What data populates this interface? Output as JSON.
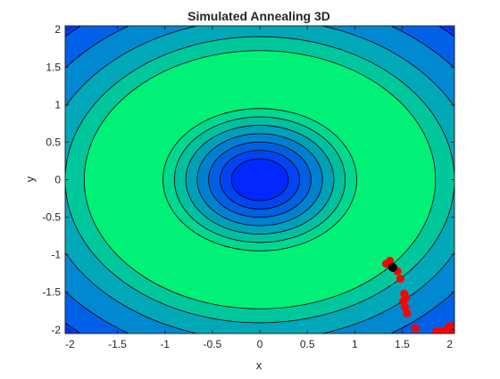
{
  "chart_data": {
    "type": "contour",
    "title": "Simulated Annealing 3D",
    "xlabel": "x",
    "ylabel": "y",
    "xlim": [
      -2.05,
      2.05
    ],
    "ylim": [
      -2.05,
      2.05
    ],
    "xticks": [
      -2,
      -1.5,
      -1,
      -0.5,
      0,
      0.5,
      1,
      1.5,
      2
    ],
    "yticks": [
      -2,
      -1.5,
      -1,
      -0.5,
      0,
      0.5,
      1,
      1.5,
      2
    ],
    "xtick_labels": [
      "-2",
      "-1.5",
      "-1",
      "-0.5",
      "0",
      "0.5",
      "1",
      "1.5",
      "2"
    ],
    "ytick_labels": [
      "-2",
      "-1.5",
      "-1",
      "-0.5",
      "0",
      "0.5",
      "1",
      "1.5",
      "2"
    ],
    "grid": false,
    "contours": {
      "center": [
        0,
        0
      ],
      "shape": "elliptical rings, level peaking at radius ~1.1 (green plateau) and lowest at center and far corners",
      "inner_radii_x": [
        0.3,
        0.42,
        0.54,
        0.66,
        0.78,
        0.9,
        1.02
      ],
      "outer_radii_x": [
        1.85,
        2.05,
        2.3,
        2.6,
        2.9
      ],
      "aspect_y_over_x": 0.93,
      "colors": {
        "peak": "#00f078",
        "inner_levels": [
          "#0028ff",
          "#0045f0",
          "#0060e0",
          "#0080d0",
          "#00a0b8",
          "#00c0a0",
          "#00d890"
        ],
        "outer_levels": [
          "#00c89c",
          "#00a8b8",
          "#0088d0",
          "#0060e8",
          "#0038f8"
        ]
      }
    },
    "series": [
      {
        "color": "#ff0000",
        "marker": "circle",
        "points": [
          [
            1.33,
            -1.12
          ],
          [
            1.37,
            -1.08
          ],
          [
            1.39,
            -1.15
          ],
          [
            1.45,
            -1.22
          ],
          [
            1.48,
            -1.32
          ],
          [
            1.52,
            -1.52
          ],
          [
            1.54,
            -1.57
          ],
          [
            1.51,
            -1.62
          ],
          [
            1.53,
            -1.7
          ],
          [
            1.55,
            -1.78
          ],
          [
            1.64,
            -1.98
          ],
          [
            1.86,
            -2.02
          ],
          [
            1.92,
            -2.02
          ],
          [
            1.97,
            -2.0
          ],
          [
            2.0,
            -1.95
          ],
          [
            2.01,
            -1.98
          ],
          [
            2.02,
            -2.02
          ],
          [
            2.0,
            -2.03
          ]
        ]
      },
      {
        "color": "#000000",
        "marker": "circle",
        "points": [
          [
            1.4,
            -1.17
          ]
        ]
      }
    ]
  }
}
